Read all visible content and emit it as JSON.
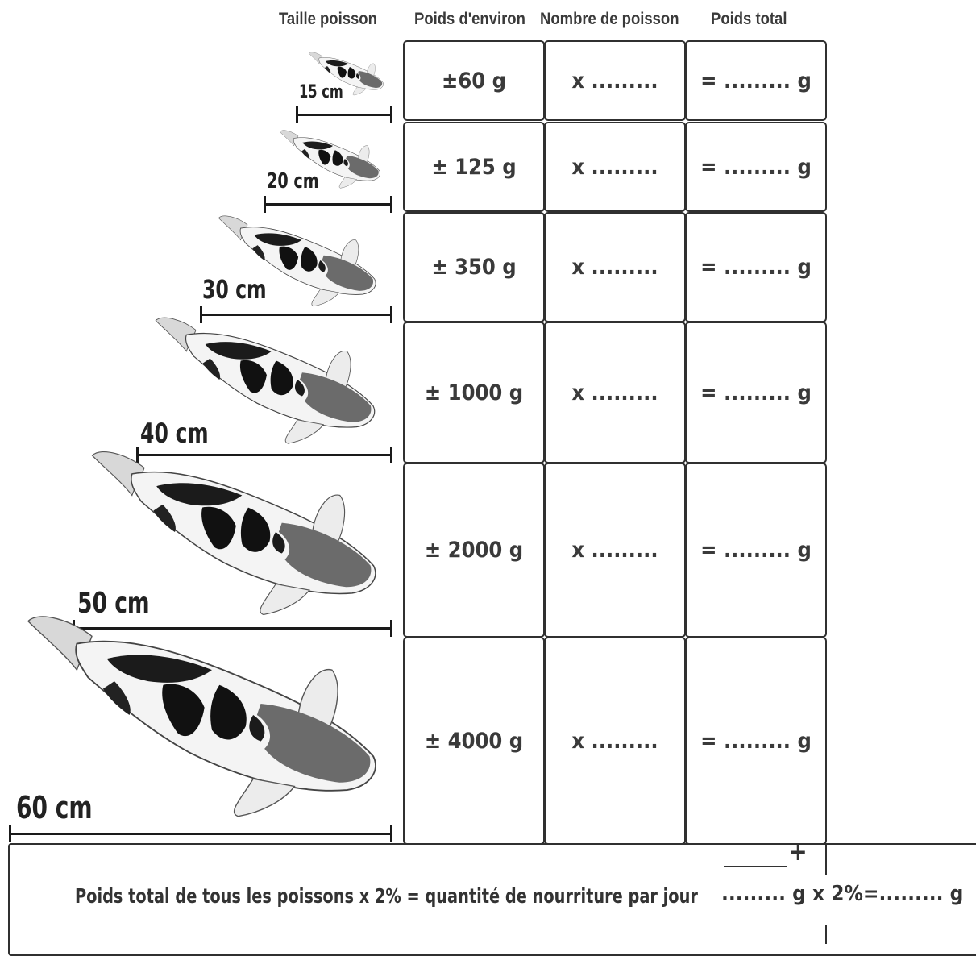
{
  "headers": {
    "size": "Taille poisson",
    "weight": "Poids d'environ",
    "count": "Nombre de poisson",
    "total": "Poids total"
  },
  "rows": [
    {
      "size_label": "15 cm",
      "weight": "±60 g",
      "count": "x .........",
      "total": "= ......... g"
    },
    {
      "size_label": "20 cm",
      "weight": "± 125 g",
      "count": "x .........",
      "total": "= ......... g"
    },
    {
      "size_label": "30 cm",
      "weight": "± 350 g",
      "count": "x .........",
      "total": "= ......... g"
    },
    {
      "size_label": "40 cm",
      "weight": "± 1000 g",
      "count": "x .........",
      "total": "= ......... g"
    },
    {
      "size_label": "50 cm",
      "weight": "± 2000 g",
      "count": "x .........",
      "total": "= ......... g"
    },
    {
      "size_label": "60 cm",
      "weight": "± 4000 g",
      "count": "x .........",
      "total": "= ......... g"
    }
  ],
  "footer": {
    "formula": "Poids total de tous les poissons x 2% = quantité de nourriture par jour",
    "calculation": "......... g x 2%=......... g",
    "plus": "+"
  },
  "icons": {
    "fish": "koi-fish-icon",
    "scale": "scale-bar-icon"
  }
}
